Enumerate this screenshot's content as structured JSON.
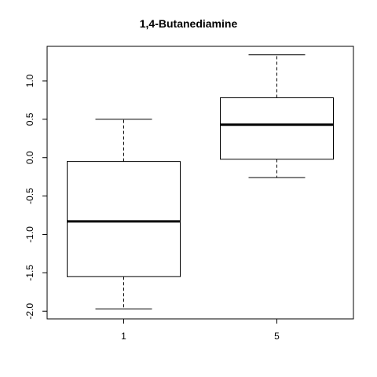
{
  "chart_data": {
    "type": "boxplot",
    "title": "1,4-Butanediamine",
    "xlabel": "",
    "ylabel": "",
    "categories": [
      "1",
      "5"
    ],
    "boxes": [
      {
        "category": "1",
        "whisker_low": -1.97,
        "q1": -1.55,
        "median": -0.83,
        "q3": -0.05,
        "whisker_high": 0.5
      },
      {
        "category": "5",
        "whisker_low": -0.26,
        "q1": -0.02,
        "median": 0.43,
        "q3": 0.78,
        "whisker_high": 1.34
      }
    ],
    "y_ticks": [
      -2.0,
      -1.5,
      -1.0,
      -0.5,
      0.0,
      0.5,
      1.0
    ],
    "y_tick_labels": [
      "-2.0",
      "-1.5",
      "-1.0",
      "-0.5",
      "0.0",
      "0.5",
      "1.0"
    ],
    "ylim": [
      -2.1,
      1.45
    ],
    "grid": false,
    "legend": "none",
    "colors": {
      "box_fill": "#ffffff",
      "stroke": "#000000"
    }
  }
}
